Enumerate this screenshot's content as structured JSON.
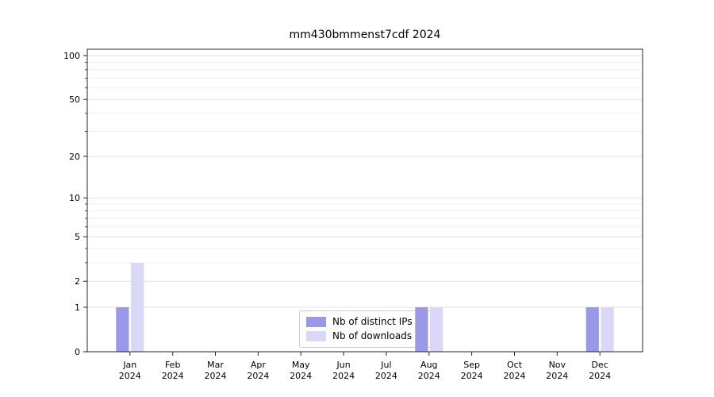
{
  "chart_data": {
    "type": "bar",
    "title": "mm430bmmenst7cdf 2024",
    "categories": [
      "Jan",
      "Feb",
      "Mar",
      "Apr",
      "May",
      "Jun",
      "Jul",
      "Aug",
      "Sep",
      "Oct",
      "Nov",
      "Dec"
    ],
    "x_year": "2024",
    "series": [
      {
        "name": "Nb of distinct IPs",
        "color": "#9999e8",
        "values": [
          1,
          0,
          0,
          0,
          0,
          0,
          0,
          1,
          0,
          0,
          0,
          1
        ]
      },
      {
        "name": "Nb of downloads",
        "color": "#d9d9f7",
        "values": [
          3,
          0,
          0,
          0,
          0,
          0,
          0,
          1,
          0,
          0,
          0,
          1
        ]
      }
    ],
    "yscale": "log1p",
    "yticks": [
      0,
      1,
      2,
      5,
      10,
      20,
      50,
      100
    ],
    "yticks_minor": [
      3,
      4,
      6,
      7,
      8,
      9,
      30,
      40,
      60,
      70,
      80,
      90
    ],
    "ylim": [
      0,
      110
    ],
    "xlabel": "",
    "ylabel": "",
    "grid": true,
    "legend_position": "lower center"
  }
}
